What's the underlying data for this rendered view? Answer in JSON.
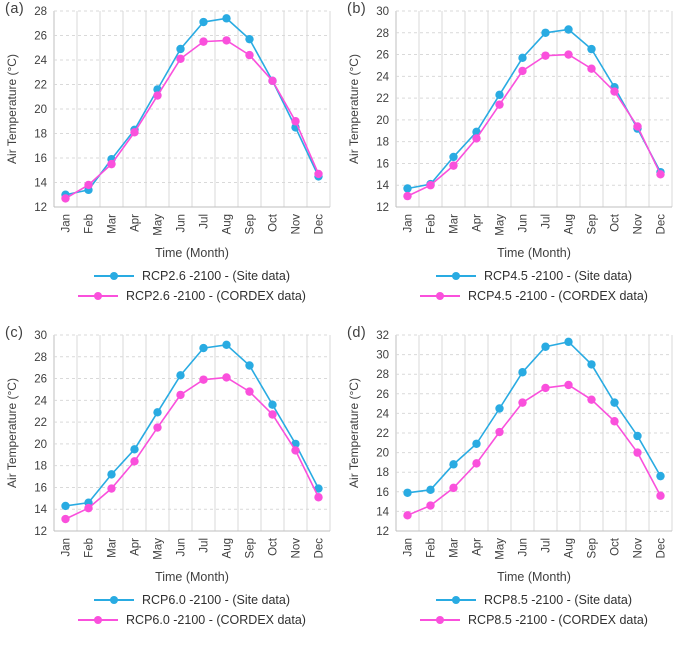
{
  "figure": {
    "background": "#ffffff",
    "grid_style": {
      "horizontal": "dashed",
      "vertical": "solid",
      "gridline_color": "#d9d9d9",
      "axis_color": "#bfbfbf",
      "text_color": "#3f3f3f"
    }
  },
  "chart_data": [
    {
      "type": "line",
      "panel_label": "(a)",
      "xlabel": "Time (Month)",
      "ylabel": "Air Temperature (°C)",
      "ylim": [
        12,
        28
      ],
      "yticks": [
        12,
        14,
        16,
        18,
        20,
        22,
        24,
        26,
        28
      ],
      "categories": [
        "Jan",
        "Feb",
        "Mar",
        "Apr",
        "May",
        "Jun",
        "Jul",
        "Aug",
        "Sep",
        "Oct",
        "Nov",
        "Dec"
      ],
      "legend_position": "bottom",
      "series": [
        {
          "name": "RCP2.6 -2100 - (Site data)",
          "color": "#29ABE2",
          "values": [
            13.0,
            13.4,
            15.9,
            18.3,
            21.6,
            24.9,
            27.1,
            27.4,
            25.7,
            22.3,
            18.5,
            14.5
          ]
        },
        {
          "name": "RCP2.6 -2100 - (CORDEX data)",
          "color": "#FA50DC",
          "values": [
            12.7,
            13.8,
            15.5,
            18.1,
            21.1,
            24.1,
            25.5,
            25.6,
            24.4,
            22.3,
            19.0,
            14.7
          ]
        }
      ]
    },
    {
      "type": "line",
      "panel_label": "(b)",
      "xlabel": "Time (Month)",
      "ylabel": "Air Temperature (°C)",
      "ylim": [
        12,
        30
      ],
      "yticks": [
        12,
        14,
        16,
        18,
        20,
        22,
        24,
        26,
        28,
        30
      ],
      "categories": [
        "Jan",
        "Feb",
        "Mar",
        "Apr",
        "May",
        "Jun",
        "Jul",
        "Aug",
        "Sep",
        "Oct",
        "Nov",
        "Dec"
      ],
      "legend_position": "bottom",
      "series": [
        {
          "name": "RCP4.5 -2100 - (Site data)",
          "color": "#29ABE2",
          "values": [
            13.7,
            14.1,
            16.6,
            18.9,
            22.3,
            25.7,
            28.0,
            28.3,
            26.5,
            23.0,
            19.2,
            15.2
          ]
        },
        {
          "name": "RCP4.5 -2100 - (CORDEX data)",
          "color": "#FA50DC",
          "values": [
            13.0,
            14.0,
            15.8,
            18.3,
            21.4,
            24.5,
            25.9,
            26.0,
            24.7,
            22.6,
            19.4,
            15.0
          ]
        }
      ]
    },
    {
      "type": "line",
      "panel_label": "(c)",
      "xlabel": "Time (Month)",
      "ylabel": "Air Temperature (°C)",
      "ylim": [
        12,
        30
      ],
      "yticks": [
        12,
        14,
        16,
        18,
        20,
        22,
        24,
        26,
        28,
        30
      ],
      "categories": [
        "Jan",
        "Feb",
        "Mar",
        "Apr",
        "May",
        "Jun",
        "Jul",
        "Aug",
        "Sep",
        "Oct",
        "Nov",
        "Dec"
      ],
      "legend_position": "bottom",
      "series": [
        {
          "name": "RCP6.0 -2100 - (Site data)",
          "color": "#29ABE2",
          "values": [
            14.3,
            14.6,
            17.2,
            19.5,
            22.9,
            26.3,
            28.8,
            29.1,
            27.2,
            23.6,
            20.0,
            15.9
          ]
        },
        {
          "name": "RCP6.0 -2100 - (CORDEX data)",
          "color": "#FA50DC",
          "values": [
            13.1,
            14.1,
            15.9,
            18.4,
            21.5,
            24.5,
            25.9,
            26.1,
            24.8,
            22.7,
            19.4,
            15.1
          ]
        }
      ]
    },
    {
      "type": "line",
      "panel_label": "(d)",
      "xlabel": "Time (Month)",
      "ylabel": "Air Temperature (°C)",
      "ylim": [
        12,
        32
      ],
      "yticks": [
        12,
        14,
        16,
        18,
        20,
        22,
        24,
        26,
        28,
        30,
        32
      ],
      "categories": [
        "Jan",
        "Feb",
        "Mar",
        "Apr",
        "May",
        "Jun",
        "Jul",
        "Aug",
        "Sep",
        "Oct",
        "Nov",
        "Dec"
      ],
      "legend_position": "bottom",
      "series": [
        {
          "name": "RCP8.5 -2100 - (Site data)",
          "color": "#29ABE2",
          "values": [
            15.9,
            16.2,
            18.8,
            20.9,
            24.5,
            28.2,
            30.8,
            31.3,
            29.0,
            25.1,
            21.7,
            17.6
          ]
        },
        {
          "name": "RCP8.5 -2100 - (CORDEX data)",
          "color": "#FA50DC",
          "values": [
            13.6,
            14.6,
            16.4,
            18.9,
            22.1,
            25.1,
            26.6,
            26.9,
            25.4,
            23.2,
            20.0,
            15.6
          ]
        }
      ]
    }
  ]
}
